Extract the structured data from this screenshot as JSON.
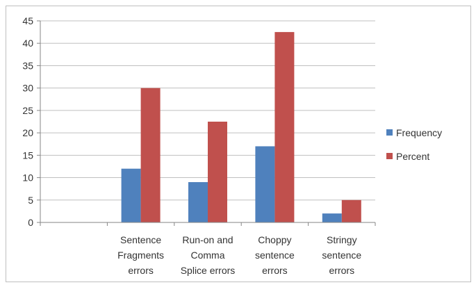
{
  "chart_data": {
    "type": "bar",
    "categories": [
      "",
      "Sentence Fragments errors",
      "Run-on and Comma Splice errors",
      "Choppy sentence errors",
      "Stringy sentence errors"
    ],
    "category_lines": [
      [],
      [
        "Sentence",
        "Fragments",
        "errors"
      ],
      [
        "Run-on and",
        "Comma",
        "Splice errors"
      ],
      [
        "Choppy",
        "sentence",
        "errors"
      ],
      [
        "Stringy",
        "sentence",
        "errors"
      ]
    ],
    "series": [
      {
        "name": "Frequency",
        "color": "#4f81bd",
        "values": [
          null,
          12,
          9,
          17,
          2
        ]
      },
      {
        "name": "Percent",
        "color": "#c0504d",
        "values": [
          null,
          30,
          22.5,
          42.5,
          5
        ]
      }
    ],
    "yticks": [
      0,
      5,
      10,
      15,
      20,
      25,
      30,
      35,
      40,
      45
    ],
    "ylim": [
      0,
      45
    ],
    "grid": true,
    "legend_position": "right"
  }
}
